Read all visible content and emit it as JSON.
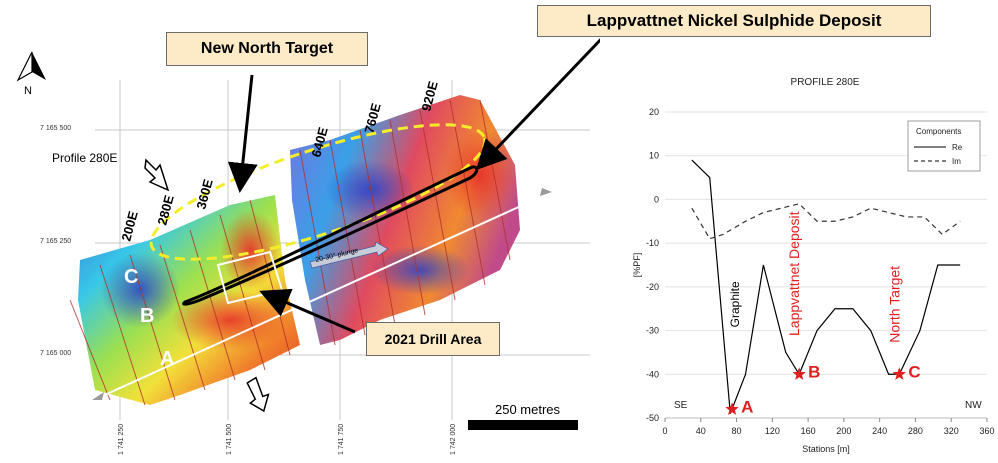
{
  "map": {
    "callouts": {
      "deposit": "Lappvattnet Nickel Sulphide Deposit",
      "new_north": "New North Target",
      "drill_area": "2021 Drill Area"
    },
    "north_label": "N",
    "profile_label": "Profile 280E",
    "plunge_label": "20-30° plunge",
    "scale_label": "250 metres",
    "line_labels": [
      "200E",
      "280E",
      "360E",
      "640E",
      "760E",
      "920E"
    ],
    "point_labels": [
      "A",
      "B",
      "C"
    ],
    "northings": [
      "7 165 500",
      "7 165 250",
      "7 165 000"
    ],
    "eastings": [
      "1 741 250",
      "1 741 500",
      "1 741 750",
      "1 742 000"
    ]
  },
  "chart_data": {
    "type": "line",
    "title": "PROFILE 280E",
    "xlabel": "Stations [m]",
    "ylabel": "[%PF]",
    "xlim": [
      0,
      360
    ],
    "ylim": [
      -50,
      20
    ],
    "xticks": [
      "0",
      "40",
      "80",
      "120",
      "160",
      "200",
      "240",
      "280",
      "320",
      "360"
    ],
    "yticks": [
      "20",
      "10",
      "0",
      "-10",
      "-20",
      "-30",
      "-40",
      "-50"
    ],
    "legend_title": "Components",
    "legend_position": "top-right",
    "series": [
      {
        "name": "Re",
        "style": "solid",
        "x": [
          30,
          50,
          73,
          90,
          110,
          135,
          150,
          170,
          190,
          210,
          230,
          250,
          262,
          285,
          305,
          330
        ],
        "y": [
          9,
          5,
          -49,
          -40,
          -15,
          -35,
          -40,
          -30,
          -25,
          -25,
          -30,
          -40,
          -40,
          -30,
          -15,
          -15
        ]
      },
      {
        "name": "Im",
        "style": "dashed",
        "x": [
          30,
          50,
          65,
          90,
          110,
          130,
          150,
          170,
          190,
          210,
          230,
          250,
          270,
          290,
          310,
          330
        ],
        "y": [
          -2,
          -9,
          -8,
          -5,
          -3,
          -2,
          -1,
          -5,
          -5,
          -4,
          -2,
          -3,
          -4,
          -4,
          -8,
          -5
        ]
      }
    ],
    "annotations": [
      {
        "text": "Graphite",
        "x": 83,
        "y": -24,
        "color": "#000000"
      },
      {
        "text": "Lappvattnet Deposit",
        "x": 150,
        "y": -17,
        "color": "#e02020"
      },
      {
        "text": "North Target",
        "x": 262,
        "y": -24,
        "color": "#e02020"
      }
    ],
    "stars": [
      {
        "label": "A",
        "x": 75,
        "y": -48
      },
      {
        "label": "B",
        "x": 150,
        "y": -40
      },
      {
        "label": "C",
        "x": 262,
        "y": -40
      }
    ],
    "side_labels": {
      "left": "SE",
      "right": "NW"
    },
    "colors": {
      "re": "#000000",
      "im": "#333333",
      "annotation": "#e02020",
      "star": "#e02020"
    }
  }
}
